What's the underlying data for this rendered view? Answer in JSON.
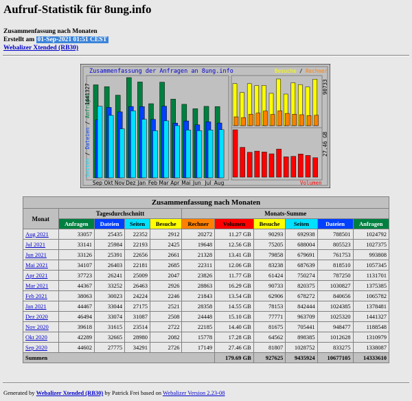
{
  "page": {
    "title": "Aufruf-Statistik für 8ung.info",
    "summary_heading": "Zusammenfassung nach Monaten",
    "created_prefix": "Erstellt am",
    "created_date": "01-Sep-2021 01:51 CEST",
    "webalizer_link": "Webalizer Xtended (RB30)"
  },
  "chart": {
    "title": "Zusammenfassung der Anfragen an 8ung.info",
    "legend_left": [
      "Seiten",
      "Dateien",
      "Anfragen"
    ],
    "legend_right_top": [
      "Besuche",
      "Rechner"
    ],
    "legend_right_bottom": "Volumen",
    "left_axis_max": "1441327",
    "right_top_max": "90733",
    "right_bottom_max": "27.46 GB",
    "colors": {
      "anfragen": "#008040",
      "dateien": "#0040ff",
      "seiten": "#00e0ff",
      "besuche": "#ffff00",
      "rechner": "#ff8000",
      "volumen": "#ff0000",
      "panel_bg": "#c0c0c0"
    }
  },
  "chart_data": {
    "type": "bar",
    "categories": [
      "Sep",
      "Okt",
      "Nov",
      "Dez",
      "Jan",
      "Feb",
      "Mar",
      "Apr",
      "Mai",
      "Jun",
      "Jul",
      "Aug"
    ],
    "series": [
      {
        "name": "Anfragen",
        "values": [
          1338087,
          1310979,
          1188548,
          1441327,
          1378481,
          1065782,
          1375385,
          1131701,
          1057345,
          993808,
          1027375,
          1024792
        ]
      },
      {
        "name": "Dateien",
        "values": [
          833275,
          1012628,
          948477,
          1025320,
          1024385,
          840656,
          1030827,
          787250,
          818510,
          761753,
          805523,
          788501
        ]
      },
      {
        "name": "Seiten",
        "values": [
          1028752,
          898385,
          705441,
          963709,
          842444,
          678272,
          820375,
          750274,
          687639,
          679691,
          688004,
          692938
        ]
      },
      {
        "name": "Besuche",
        "values": [
          81807,
          64562,
          81675,
          77771,
          78153,
          62906,
          90733,
          61424,
          83238,
          79858,
          75205,
          90293
        ]
      },
      {
        "name": "Rechner",
        "values": [
          17149,
          15778,
          22185,
          24448,
          28358,
          21843,
          28863,
          23826,
          22311,
          21328,
          19648,
          20272
        ]
      },
      {
        "name": "Volumen",
        "values": [
          27.46,
          17.28,
          14.4,
          15.1,
          14.55,
          13.54,
          16.29,
          11.77,
          12.06,
          13.41,
          12.56,
          11.27
        ]
      }
    ]
  },
  "table": {
    "title": "Zusammenfassung nach Monaten",
    "monat_label": "Monat",
    "group_daily": "Tagesdurchschnitt",
    "group_monthly": "Monats-Summe",
    "columns_daily": [
      {
        "label": "Anfragen",
        "bg": "#008040",
        "fg": "#ffffff"
      },
      {
        "label": "Dateien",
        "bg": "#0040ff",
        "fg": "#ffffff"
      },
      {
        "label": "Seiten",
        "bg": "#00e0ff",
        "fg": "#000000"
      },
      {
        "label": "Besuche",
        "bg": "#ffff00",
        "fg": "#000000"
      }
    ],
    "columns_monthly": [
      {
        "label": "Rechner",
        "bg": "#ff8000",
        "fg": "#000000"
      },
      {
        "label": "Volumen",
        "bg": "#ff0000",
        "fg": "#000000"
      },
      {
        "label": "Besuche",
        "bg": "#ffff00",
        "fg": "#000000"
      },
      {
        "label": "Seiten",
        "bg": "#00e0ff",
        "fg": "#000000"
      },
      {
        "label": "Dateien",
        "bg": "#0040ff",
        "fg": "#ffffff"
      },
      {
        "label": "Anfragen",
        "bg": "#008040",
        "fg": "#ffffff"
      }
    ],
    "rows": [
      [
        "Aug 2021",
        "33057",
        "25435",
        "22352",
        "2912",
        "20272",
        "11.27 GB",
        "90293",
        "692938",
        "788501",
        "1024792"
      ],
      [
        "Jul 2021",
        "33141",
        "25984",
        "22193",
        "2425",
        "19648",
        "12.56 GB",
        "75205",
        "688004",
        "805523",
        "1027375"
      ],
      [
        "Jun 2021",
        "33126",
        "25391",
        "22656",
        "2661",
        "21328",
        "13.41 GB",
        "79858",
        "679691",
        "761753",
        "993808"
      ],
      [
        "Mai 2021",
        "34107",
        "26403",
        "22181",
        "2685",
        "22311",
        "12.06 GB",
        "83238",
        "687639",
        "818510",
        "1057345"
      ],
      [
        "Apr 2021",
        "37723",
        "26241",
        "25009",
        "2047",
        "23826",
        "11.77 GB",
        "61424",
        "750274",
        "787250",
        "1131701"
      ],
      [
        "Mar 2021",
        "44367",
        "33252",
        "26463",
        "2926",
        "28863",
        "16.29 GB",
        "90733",
        "820375",
        "1030827",
        "1375385"
      ],
      [
        "Feb 2021",
        "38063",
        "30023",
        "24224",
        "2246",
        "21843",
        "13.54 GB",
        "62906",
        "678272",
        "840656",
        "1065782"
      ],
      [
        "Jan 2021",
        "44467",
        "33044",
        "27175",
        "2521",
        "28358",
        "14.55 GB",
        "78153",
        "842444",
        "1024385",
        "1378481"
      ],
      [
        "Dez 2020",
        "46494",
        "33074",
        "31087",
        "2508",
        "24448",
        "15.10 GB",
        "77771",
        "963709",
        "1025320",
        "1441327"
      ],
      [
        "Nov 2020",
        "39618",
        "31615",
        "23514",
        "2722",
        "22185",
        "14.40 GB",
        "81675",
        "705441",
        "948477",
        "1188548"
      ],
      [
        "Okt 2020",
        "42289",
        "32665",
        "28980",
        "2082",
        "15778",
        "17.28 GB",
        "64562",
        "898385",
        "1012628",
        "1310979"
      ],
      [
        "Sep 2020",
        "44602",
        "27775",
        "34291",
        "2726",
        "17149",
        "27.46 GB",
        "81807",
        "1028752",
        "833275",
        "1338087"
      ]
    ],
    "summen": {
      "label": "Summen",
      "values": [
        "179.69 GB",
        "927625",
        "9435924",
        "10677105",
        "14333610"
      ]
    }
  },
  "footer": {
    "prefix": "Generated by",
    "link1": "Webalizer Xtended (RB30)",
    "middle": "by Patrick Frei based on",
    "link2": "Webalizer Version 2.23-08"
  }
}
